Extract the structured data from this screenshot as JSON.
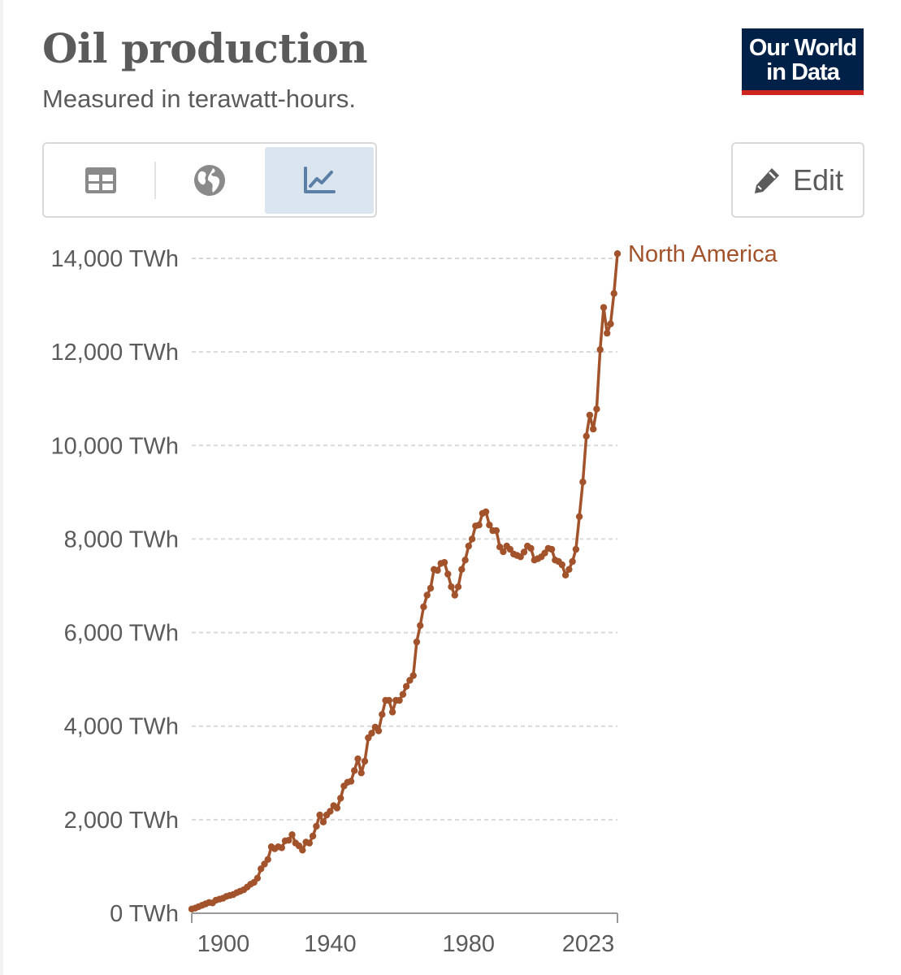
{
  "header": {
    "title": "Oil production",
    "subtitle": "Measured in terawatt-hours.",
    "logo_line1": "Our World",
    "logo_line2": "in Data"
  },
  "toolbar": {
    "buttons": [
      {
        "icon": "table-icon",
        "active": false
      },
      {
        "icon": "globe-icon",
        "active": false
      },
      {
        "icon": "line-chart-icon",
        "active": true
      }
    ],
    "edit_label": "Edit"
  },
  "colors": {
    "series": "#a2532b",
    "text": "#5b5b5b",
    "grid": "#d9d9d9",
    "active_tab": "#dbe5f0",
    "logo_bg": "#002147",
    "logo_accent": "#ce261e"
  },
  "chart_data": {
    "type": "line",
    "title": "Oil production",
    "subtitle": "Measured in terawatt-hours.",
    "ylim": [
      0,
      14000
    ],
    "y_ticks": [
      0,
      2000,
      4000,
      6000,
      8000,
      10000,
      12000,
      14000
    ],
    "y_tick_labels": [
      "0 TWh",
      "2,000 TWh",
      "4,000 TWh",
      "6,000 TWh",
      "8,000 TWh",
      "10,000 TWh",
      "12,000 TWh",
      "14,000 TWh"
    ],
    "x_range": [
      1900,
      2023
    ],
    "x_ticks": [
      1900,
      1940,
      1980,
      2023
    ],
    "x_tick_labels": [
      "1900",
      "1940",
      "1980",
      "2023"
    ],
    "grid": "horizontal dashed",
    "series": [
      {
        "name": "North America",
        "label_placement": "end-of-line",
        "points": [
          [
            1900,
            90
          ],
          [
            1901,
            110
          ],
          [
            1902,
            140
          ],
          [
            1903,
            170
          ],
          [
            1904,
            200
          ],
          [
            1905,
            230
          ],
          [
            1906,
            220
          ],
          [
            1907,
            280
          ],
          [
            1908,
            300
          ],
          [
            1909,
            320
          ],
          [
            1910,
            360
          ],
          [
            1911,
            380
          ],
          [
            1912,
            400
          ],
          [
            1913,
            440
          ],
          [
            1914,
            470
          ],
          [
            1915,
            500
          ],
          [
            1916,
            560
          ],
          [
            1917,
            620
          ],
          [
            1918,
            660
          ],
          [
            1919,
            750
          ],
          [
            1920,
            950
          ],
          [
            1921,
            1050
          ],
          [
            1922,
            1150
          ],
          [
            1923,
            1420
          ],
          [
            1924,
            1380
          ],
          [
            1925,
            1420
          ],
          [
            1926,
            1400
          ],
          [
            1927,
            1550
          ],
          [
            1928,
            1560
          ],
          [
            1929,
            1680
          ],
          [
            1930,
            1500
          ],
          [
            1931,
            1440
          ],
          [
            1932,
            1350
          ],
          [
            1933,
            1520
          ],
          [
            1934,
            1500
          ],
          [
            1935,
            1650
          ],
          [
            1936,
            1860
          ],
          [
            1937,
            2100
          ],
          [
            1938,
            1950
          ],
          [
            1939,
            2100
          ],
          [
            1940,
            2180
          ],
          [
            1941,
            2300
          ],
          [
            1942,
            2250
          ],
          [
            1943,
            2460
          ],
          [
            1944,
            2720
          ],
          [
            1945,
            2800
          ],
          [
            1946,
            2820
          ],
          [
            1947,
            3050
          ],
          [
            1948,
            3300
          ],
          [
            1949,
            3000
          ],
          [
            1950,
            3250
          ],
          [
            1951,
            3750
          ],
          [
            1952,
            3850
          ],
          [
            1953,
            3980
          ],
          [
            1954,
            3900
          ],
          [
            1955,
            4250
          ],
          [
            1956,
            4550
          ],
          [
            1957,
            4550
          ],
          [
            1958,
            4300
          ],
          [
            1959,
            4550
          ],
          [
            1960,
            4550
          ],
          [
            1961,
            4680
          ],
          [
            1962,
            4850
          ],
          [
            1963,
            4980
          ],
          [
            1964,
            5080
          ],
          [
            1965,
            5800
          ],
          [
            1966,
            6150
          ],
          [
            1967,
            6550
          ],
          [
            1968,
            6800
          ],
          [
            1969,
            6950
          ],
          [
            1970,
            7350
          ],
          [
            1971,
            7330
          ],
          [
            1972,
            7480
          ],
          [
            1973,
            7500
          ],
          [
            1974,
            7250
          ],
          [
            1975,
            6980
          ],
          [
            1976,
            6800
          ],
          [
            1977,
            6980
          ],
          [
            1978,
            7350
          ],
          [
            1979,
            7550
          ],
          [
            1980,
            7850
          ],
          [
            1981,
            8000
          ],
          [
            1982,
            8280
          ],
          [
            1983,
            8300
          ],
          [
            1984,
            8550
          ],
          [
            1985,
            8580
          ],
          [
            1986,
            8300
          ],
          [
            1987,
            8180
          ],
          [
            1988,
            8180
          ],
          [
            1989,
            7830
          ],
          [
            1990,
            7730
          ],
          [
            1991,
            7850
          ],
          [
            1992,
            7780
          ],
          [
            1993,
            7680
          ],
          [
            1994,
            7650
          ],
          [
            1995,
            7620
          ],
          [
            1996,
            7720
          ],
          [
            1997,
            7850
          ],
          [
            1998,
            7800
          ],
          [
            1999,
            7550
          ],
          [
            2000,
            7580
          ],
          [
            2001,
            7620
          ],
          [
            2002,
            7700
          ],
          [
            2003,
            7800
          ],
          [
            2004,
            7780
          ],
          [
            2005,
            7550
          ],
          [
            2006,
            7520
          ],
          [
            2007,
            7450
          ],
          [
            2008,
            7230
          ],
          [
            2009,
            7350
          ],
          [
            2010,
            7520
          ],
          [
            2011,
            7780
          ],
          [
            2012,
            8480
          ],
          [
            2013,
            9220
          ],
          [
            2014,
            10200
          ],
          [
            2015,
            10650
          ],
          [
            2016,
            10350
          ],
          [
            2017,
            10780
          ],
          [
            2018,
            12050
          ],
          [
            2019,
            12950
          ],
          [
            2020,
            12400
          ],
          [
            2021,
            12600
          ],
          [
            2022,
            13250
          ],
          [
            2023,
            14100
          ]
        ]
      }
    ]
  }
}
